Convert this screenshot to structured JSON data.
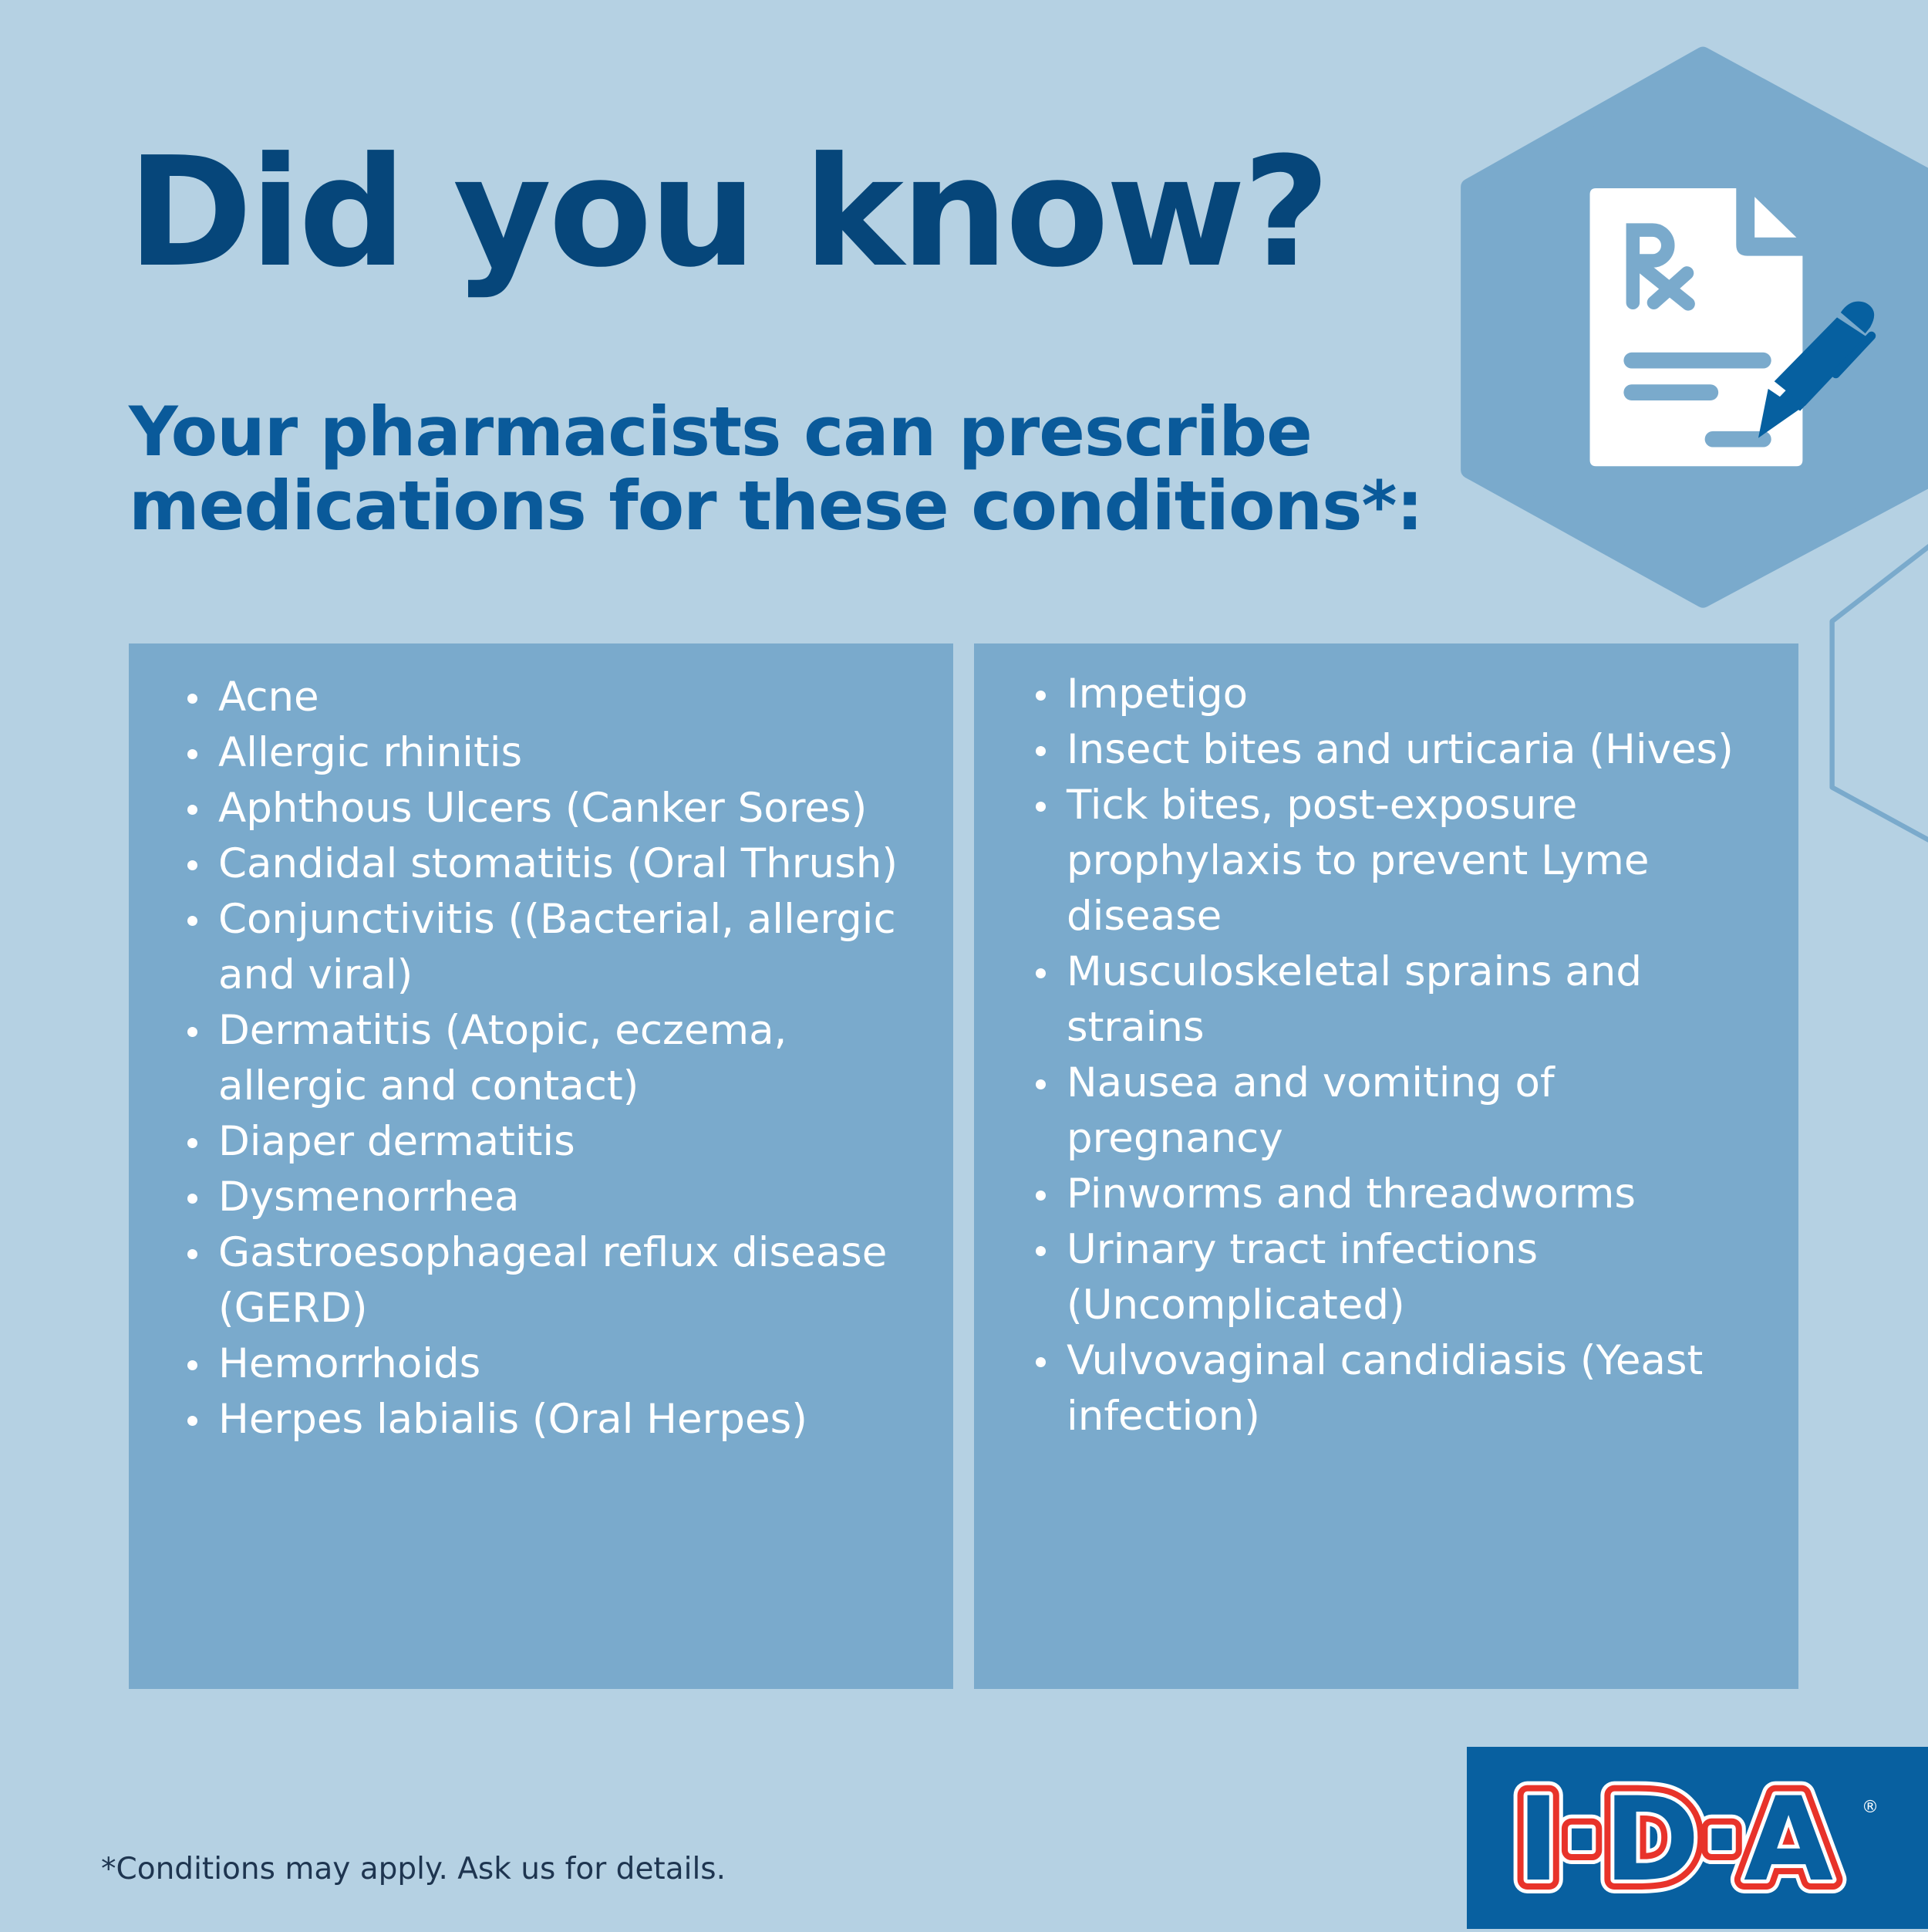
{
  "header": {
    "title": "Did you know?",
    "subtitle_line1": "Your pharmacists can prescribe",
    "subtitle_line2": "medications for these conditions*:"
  },
  "conditions_left": [
    "Acne",
    "Allergic rhinitis",
    "Aphthous Ulcers (Canker Sores)",
    "Candidal stomatitis (Oral Thrush)",
    "Conjunctivitis ((Bacterial, allergic and viral)",
    "Dermatitis (Atopic, eczema, allergic and contact)",
    "Diaper dermatitis",
    "Dysmenorrhea",
    "Gastroesophageal reflux disease (GERD)",
    "Hemorrhoids",
    "Herpes labialis (Oral Herpes)"
  ],
  "conditions_right": [
    "Impetigo",
    "Insect bites and urticaria (Hives)",
    "Tick bites, post-exposure prophylaxis to prevent Lyme disease",
    "Musculoskeletal sprains and strains",
    "Nausea and vomiting of pregnancy",
    "Pinworms and threadworms",
    "Urinary tract infections (Uncomplicated)",
    "Vulvovaginal candidiasis (Yeast infection)"
  ],
  "footnote": "*Conditions may apply. Ask us for details.",
  "logo": {
    "text": "I·D·A",
    "registered": "®"
  },
  "icons": {
    "hero": "prescription-document-pen-icon"
  },
  "colors": {
    "background": "#b5d1e3",
    "panel": "#7aaacc",
    "title": "#06467a",
    "subtitle": "#0a5a9a",
    "brand_blue": "#0860a0",
    "brand_red": "#e8332a"
  }
}
